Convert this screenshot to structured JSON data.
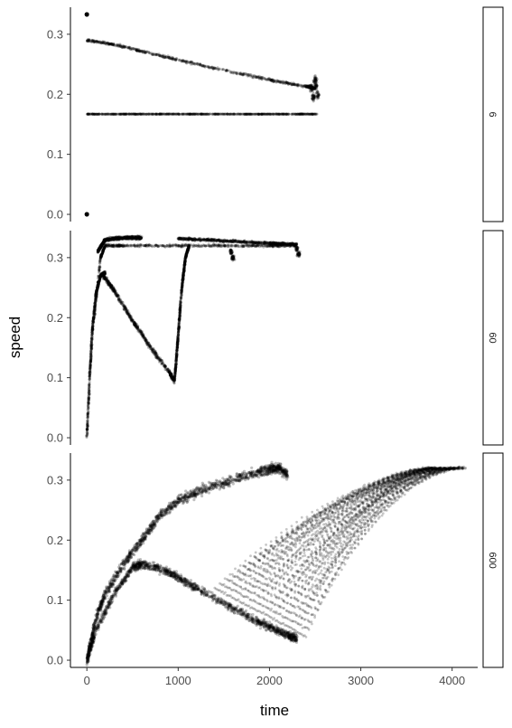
{
  "chart_data": {
    "type": "scatter",
    "layout": "faceted-vertical",
    "xlabel": "time",
    "ylabel": "speed",
    "xlim": [
      -180,
      4280
    ],
    "ylim": [
      -0.012,
      0.345
    ],
    "x_ticks": [
      0,
      1000,
      2000,
      3000,
      4000
    ],
    "x_tick_labels": [
      "0",
      "1000",
      "2000",
      "3000",
      "4000"
    ],
    "y_ticks": [
      0.0,
      0.1,
      0.2,
      0.3
    ],
    "y_tick_labels": [
      "0.0",
      "0.1",
      "0.2",
      "0.3"
    ],
    "grid": false,
    "point_color": "#000000",
    "point_alpha": 0.25,
    "strip_position": "right",
    "facets": [
      {
        "strip_label": "6",
        "curves": [
          {
            "kind": "line",
            "points": [
              [
                0,
                0.29
              ],
              [
                300,
                0.283
              ],
              [
                600,
                0.272
              ],
              [
                1000,
                0.257
              ],
              [
                1500,
                0.24
              ],
              [
                2000,
                0.224
              ],
              [
                2400,
                0.213
              ],
              [
                2500,
                0.21
              ]
            ],
            "spread": 0.003
          },
          {
            "kind": "line",
            "points": [
              [
                0,
                0.167
              ],
              [
                2520,
                0.167
              ]
            ],
            "spread": 0.0006
          },
          {
            "kind": "burst",
            "points": [
              [
                2460,
                0.21
              ],
              [
                2480,
                0.195
              ],
              [
                2500,
                0.225
              ],
              [
                2530,
                0.2
              ],
              [
                2510,
                0.215
              ]
            ],
            "spread": 0.01
          },
          {
            "kind": "dot",
            "points": [
              [
                0,
                0.333
              ],
              [
                0,
                0.0
              ]
            ]
          }
        ]
      },
      {
        "strip_label": "60",
        "curves": [
          {
            "kind": "line",
            "points": [
              [
                0,
                0.0
              ],
              [
                30,
                0.1
              ],
              [
                60,
                0.18
              ],
              [
                100,
                0.24
              ],
              [
                150,
                0.27
              ],
              [
                200,
                0.275
              ]
            ],
            "spread": 0.004
          },
          {
            "kind": "line",
            "points": [
              [
                180,
                0.27
              ],
              [
                300,
                0.245
              ],
              [
                500,
                0.195
              ],
              [
                700,
                0.15
              ],
              [
                900,
                0.11
              ],
              [
                960,
                0.095
              ]
            ],
            "spread": 0.006
          },
          {
            "kind": "line",
            "points": [
              [
                80,
                0.2
              ],
              [
                150,
                0.3
              ],
              [
                200,
                0.32
              ],
              [
                400,
                0.32
              ],
              [
                1000,
                0.32
              ],
              [
                1500,
                0.32
              ],
              [
                2000,
                0.32
              ],
              [
                2300,
                0.32
              ]
            ],
            "spread": 0.003
          },
          {
            "kind": "line",
            "points": [
              [
                960,
                0.095
              ],
              [
                1000,
                0.17
              ],
              [
                1040,
                0.25
              ],
              [
                1080,
                0.3
              ],
              [
                1120,
                0.32
              ]
            ],
            "spread": 0.004
          },
          {
            "kind": "line",
            "points": [
              [
                1000,
                0.332
              ],
              [
                1500,
                0.328
              ],
              [
                2000,
                0.324
              ],
              [
                2300,
                0.322
              ]
            ],
            "spread": 0.003
          },
          {
            "kind": "line",
            "points": [
              [
                120,
                0.31
              ],
              [
                200,
                0.33
              ],
              [
                400,
                0.333
              ],
              [
                600,
                0.333
              ]
            ],
            "spread": 0.004
          },
          {
            "kind": "burst",
            "points": [
              [
                1580,
                0.31
              ],
              [
                1600,
                0.3
              ],
              [
                2300,
                0.315
              ],
              [
                2320,
                0.305
              ]
            ],
            "spread": 0.006
          }
        ]
      },
      {
        "strip_label": "600",
        "curves": [
          {
            "kind": "band",
            "points": [
              [
                0,
                0.0
              ],
              [
                100,
                0.07
              ],
              [
                200,
                0.11
              ],
              [
                400,
                0.16
              ],
              [
                600,
                0.2
              ],
              [
                800,
                0.24
              ],
              [
                1000,
                0.265
              ],
              [
                1200,
                0.28
              ],
              [
                1500,
                0.295
              ],
              [
                1800,
                0.31
              ],
              [
                2000,
                0.318
              ],
              [
                2100,
                0.32
              ],
              [
                2200,
                0.31
              ]
            ],
            "spread": 0.012
          },
          {
            "kind": "band",
            "points": [
              [
                0,
                0.0
              ],
              [
                100,
                0.05
              ],
              [
                300,
                0.11
              ],
              [
                500,
                0.155
              ],
              [
                600,
                0.16
              ],
              [
                800,
                0.152
              ],
              [
                1000,
                0.138
              ],
              [
                1200,
                0.12
              ],
              [
                1500,
                0.095
              ],
              [
                1800,
                0.07
              ],
              [
                2000,
                0.055
              ],
              [
                2200,
                0.042
              ],
              [
                2300,
                0.036
              ]
            ],
            "spread": 0.01
          },
          {
            "kind": "fan",
            "start_x": [
              1400,
              2400
            ],
            "end_x": [
              3600,
              4150
            ],
            "y_start": [
              0.12,
              0.04
            ],
            "y_end": 0.32,
            "spread": 0.008
          }
        ]
      }
    ]
  }
}
